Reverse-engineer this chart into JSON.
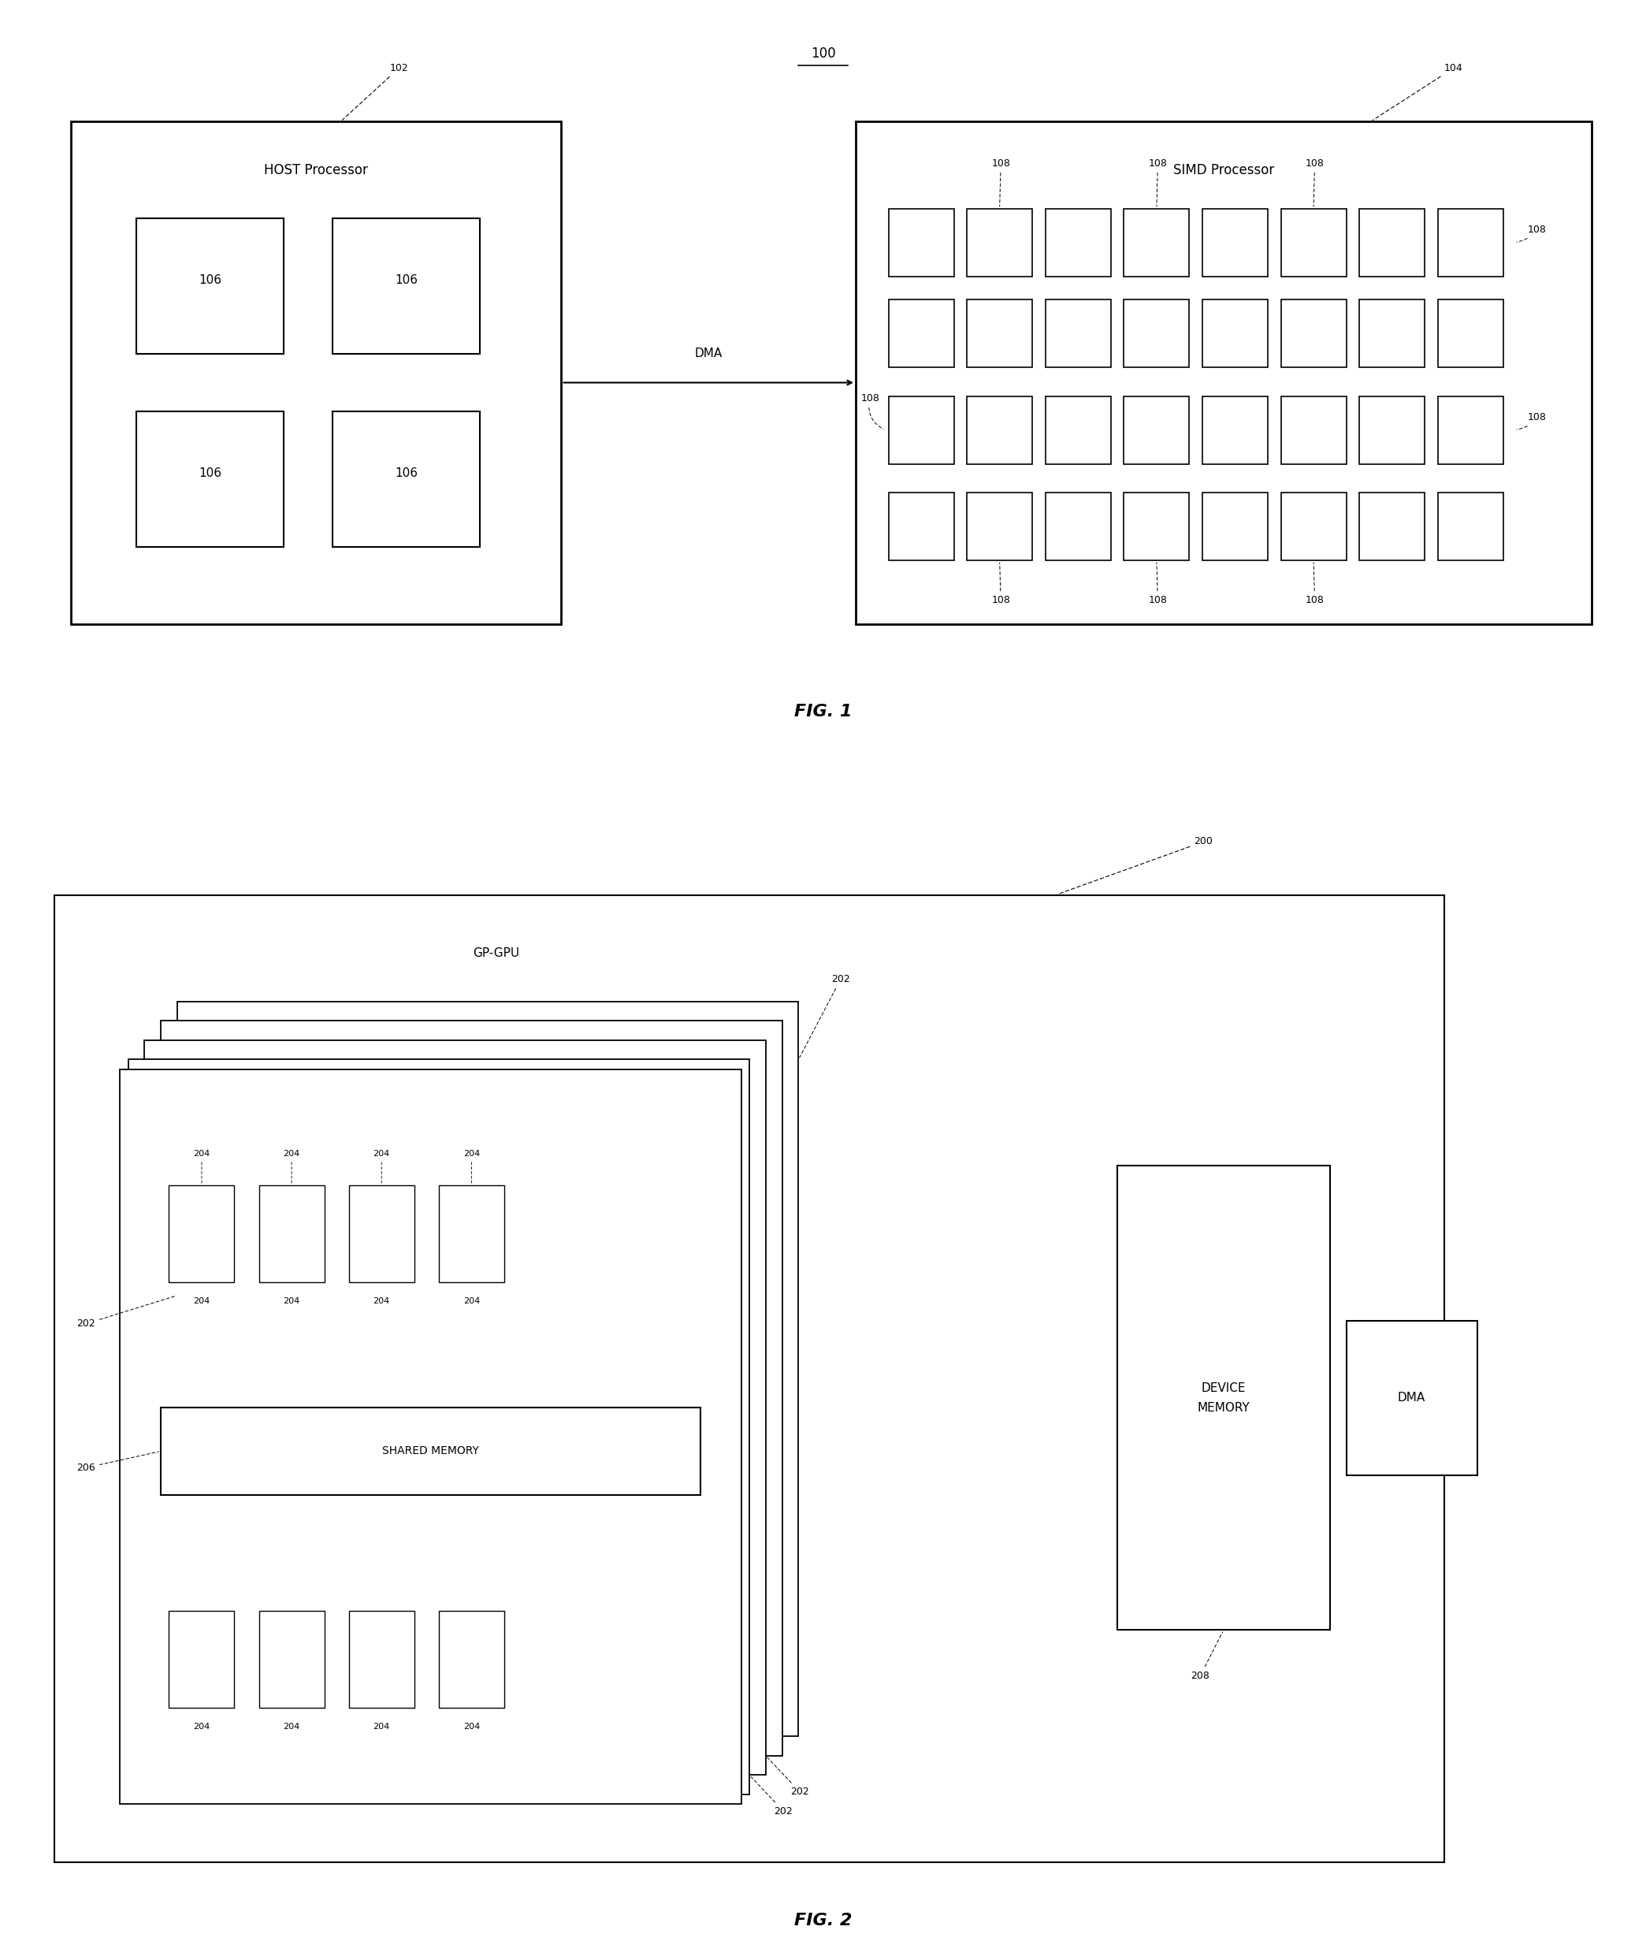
{
  "fig_width": 20.89,
  "fig_height": 24.68,
  "bg_color": "#ffffff",
  "label_100": "100",
  "fig1_caption": "FIG. 1",
  "fig2_caption": "FIG. 2",
  "host_label": "HOST Processor",
  "host_ref": "102",
  "simd_label": "SIMD Processor",
  "simd_ref": "104",
  "dma1_label": "DMA",
  "core_label": "106",
  "pe_label": "108",
  "outer200_ref": "200",
  "gpgpu_label": "GP-GPU",
  "sm_ref": "202",
  "thread_ref": "204",
  "shared_mem_label": "SHARED MEMORY",
  "shared_mem_ref": "206",
  "device_mem_label": "DEVICE\nMEMORY",
  "device_mem_ref": "208",
  "dma2_label": "DMA"
}
